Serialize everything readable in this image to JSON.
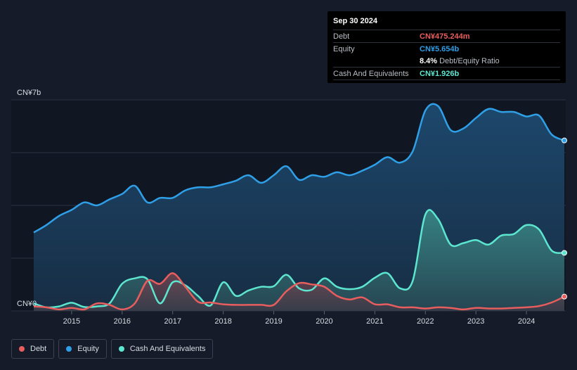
{
  "tooltip": {
    "date": "Sep 30 2024",
    "rows": [
      {
        "label": "Debt",
        "value": "CN¥475.244m",
        "color": "#e85d5d"
      },
      {
        "label": "Equity",
        "value": "CN¥5.654b",
        "color": "#2f9fe8"
      },
      {
        "label": "",
        "value": "8.4%",
        "suffix": "Debt/Equity Ratio",
        "color": "#ffffff"
      },
      {
        "label": "Cash And Equivalents",
        "value": "CN¥1.926b",
        "color": "#5ce6d0"
      }
    ]
  },
  "legend": [
    {
      "label": "Debt",
      "color": "#e85d5d"
    },
    {
      "label": "Equity",
      "color": "#2f9fe8"
    },
    {
      "label": "Cash And Equivalents",
      "color": "#5ce6d0"
    }
  ],
  "chart_data": {
    "type": "area",
    "ylim": [
      0,
      7
    ],
    "xlim": [
      2014.25,
      2024.75
    ],
    "y_top_label": "CN¥7b",
    "y_bottom_label": "CN¥0",
    "x_ticks": [
      2015,
      2016,
      2017,
      2018,
      2019,
      2020,
      2021,
      2022,
      2023,
      2024
    ],
    "grid": true,
    "legend_placement": "bottom-left",
    "series": [
      {
        "name": "Equity",
        "color": "#2f9fe8",
        "points": [
          [
            2014.25,
            2.6
          ],
          [
            2014.5,
            2.85
          ],
          [
            2014.75,
            3.15
          ],
          [
            2015.0,
            3.35
          ],
          [
            2015.25,
            3.6
          ],
          [
            2015.5,
            3.5
          ],
          [
            2015.75,
            3.7
          ],
          [
            2016.0,
            3.88
          ],
          [
            2016.25,
            4.15
          ],
          [
            2016.5,
            3.6
          ],
          [
            2016.75,
            3.75
          ],
          [
            2017.0,
            3.75
          ],
          [
            2017.25,
            4.0
          ],
          [
            2017.5,
            4.1
          ],
          [
            2017.75,
            4.1
          ],
          [
            2018.0,
            4.2
          ],
          [
            2018.25,
            4.32
          ],
          [
            2018.5,
            4.5
          ],
          [
            2018.75,
            4.25
          ],
          [
            2019.0,
            4.5
          ],
          [
            2019.25,
            4.8
          ],
          [
            2019.5,
            4.35
          ],
          [
            2019.75,
            4.5
          ],
          [
            2020.0,
            4.45
          ],
          [
            2020.25,
            4.6
          ],
          [
            2020.5,
            4.5
          ],
          [
            2020.75,
            4.65
          ],
          [
            2021.0,
            4.85
          ],
          [
            2021.25,
            5.1
          ],
          [
            2021.5,
            4.92
          ],
          [
            2021.75,
            5.3
          ],
          [
            2022.0,
            6.65
          ],
          [
            2022.25,
            6.8
          ],
          [
            2022.5,
            6.0
          ],
          [
            2022.75,
            6.05
          ],
          [
            2023.0,
            6.4
          ],
          [
            2023.25,
            6.7
          ],
          [
            2023.5,
            6.6
          ],
          [
            2023.75,
            6.6
          ],
          [
            2024.0,
            6.45
          ],
          [
            2024.25,
            6.48
          ],
          [
            2024.5,
            5.85
          ],
          [
            2024.75,
            5.654
          ]
        ]
      },
      {
        "name": "Cash And Equivalents",
        "color": "#5ce6d0",
        "points": [
          [
            2014.25,
            0.25
          ],
          [
            2014.5,
            0.12
          ],
          [
            2014.75,
            0.15
          ],
          [
            2015.0,
            0.27
          ],
          [
            2015.25,
            0.13
          ],
          [
            2015.5,
            0.15
          ],
          [
            2015.75,
            0.25
          ],
          [
            2016.0,
            0.9
          ],
          [
            2016.25,
            1.08
          ],
          [
            2016.5,
            1.05
          ],
          [
            2016.75,
            0.25
          ],
          [
            2017.0,
            0.95
          ],
          [
            2017.25,
            0.85
          ],
          [
            2017.5,
            0.5
          ],
          [
            2017.75,
            0.18
          ],
          [
            2018.0,
            0.95
          ],
          [
            2018.25,
            0.5
          ],
          [
            2018.5,
            0.68
          ],
          [
            2018.75,
            0.8
          ],
          [
            2019.0,
            0.82
          ],
          [
            2019.25,
            1.2
          ],
          [
            2019.5,
            0.75
          ],
          [
            2019.75,
            0.7
          ],
          [
            2020.0,
            1.08
          ],
          [
            2020.25,
            0.8
          ],
          [
            2020.5,
            0.72
          ],
          [
            2020.75,
            0.8
          ],
          [
            2021.0,
            1.1
          ],
          [
            2021.25,
            1.25
          ],
          [
            2021.5,
            0.75
          ],
          [
            2021.75,
            1.0
          ],
          [
            2022.0,
            3.2
          ],
          [
            2022.25,
            3.05
          ],
          [
            2022.5,
            2.2
          ],
          [
            2022.75,
            2.25
          ],
          [
            2023.0,
            2.35
          ],
          [
            2023.25,
            2.2
          ],
          [
            2023.5,
            2.5
          ],
          [
            2023.75,
            2.55
          ],
          [
            2024.0,
            2.85
          ],
          [
            2024.25,
            2.7
          ],
          [
            2024.5,
            2.0
          ],
          [
            2024.75,
            1.926
          ]
        ]
      },
      {
        "name": "Debt",
        "color": "#e85d5d",
        "points": [
          [
            2014.25,
            0.15
          ],
          [
            2014.5,
            0.12
          ],
          [
            2014.75,
            0.05
          ],
          [
            2015.0,
            0.1
          ],
          [
            2015.25,
            0.05
          ],
          [
            2015.5,
            0.25
          ],
          [
            2015.75,
            0.2
          ],
          [
            2016.0,
            0.05
          ],
          [
            2016.25,
            0.25
          ],
          [
            2016.5,
            1.0
          ],
          [
            2016.75,
            0.9
          ],
          [
            2017.0,
            1.25
          ],
          [
            2017.25,
            0.8
          ],
          [
            2017.5,
            0.3
          ],
          [
            2017.75,
            0.28
          ],
          [
            2018.0,
            0.22
          ],
          [
            2018.25,
            0.2
          ],
          [
            2018.5,
            0.2
          ],
          [
            2018.75,
            0.2
          ],
          [
            2019.0,
            0.2
          ],
          [
            2019.25,
            0.65
          ],
          [
            2019.5,
            0.92
          ],
          [
            2019.75,
            0.88
          ],
          [
            2020.0,
            0.8
          ],
          [
            2020.25,
            0.5
          ],
          [
            2020.5,
            0.38
          ],
          [
            2020.75,
            0.45
          ],
          [
            2021.0,
            0.22
          ],
          [
            2021.25,
            0.22
          ],
          [
            2021.5,
            0.12
          ],
          [
            2021.75,
            0.12
          ],
          [
            2022.0,
            0.08
          ],
          [
            2022.25,
            0.12
          ],
          [
            2022.5,
            0.1
          ],
          [
            2022.75,
            0.05
          ],
          [
            2023.0,
            0.1
          ],
          [
            2023.25,
            0.08
          ],
          [
            2023.5,
            0.08
          ],
          [
            2023.75,
            0.1
          ],
          [
            2024.0,
            0.12
          ],
          [
            2024.25,
            0.16
          ],
          [
            2024.5,
            0.28
          ],
          [
            2024.75,
            0.475
          ]
        ]
      }
    ]
  }
}
